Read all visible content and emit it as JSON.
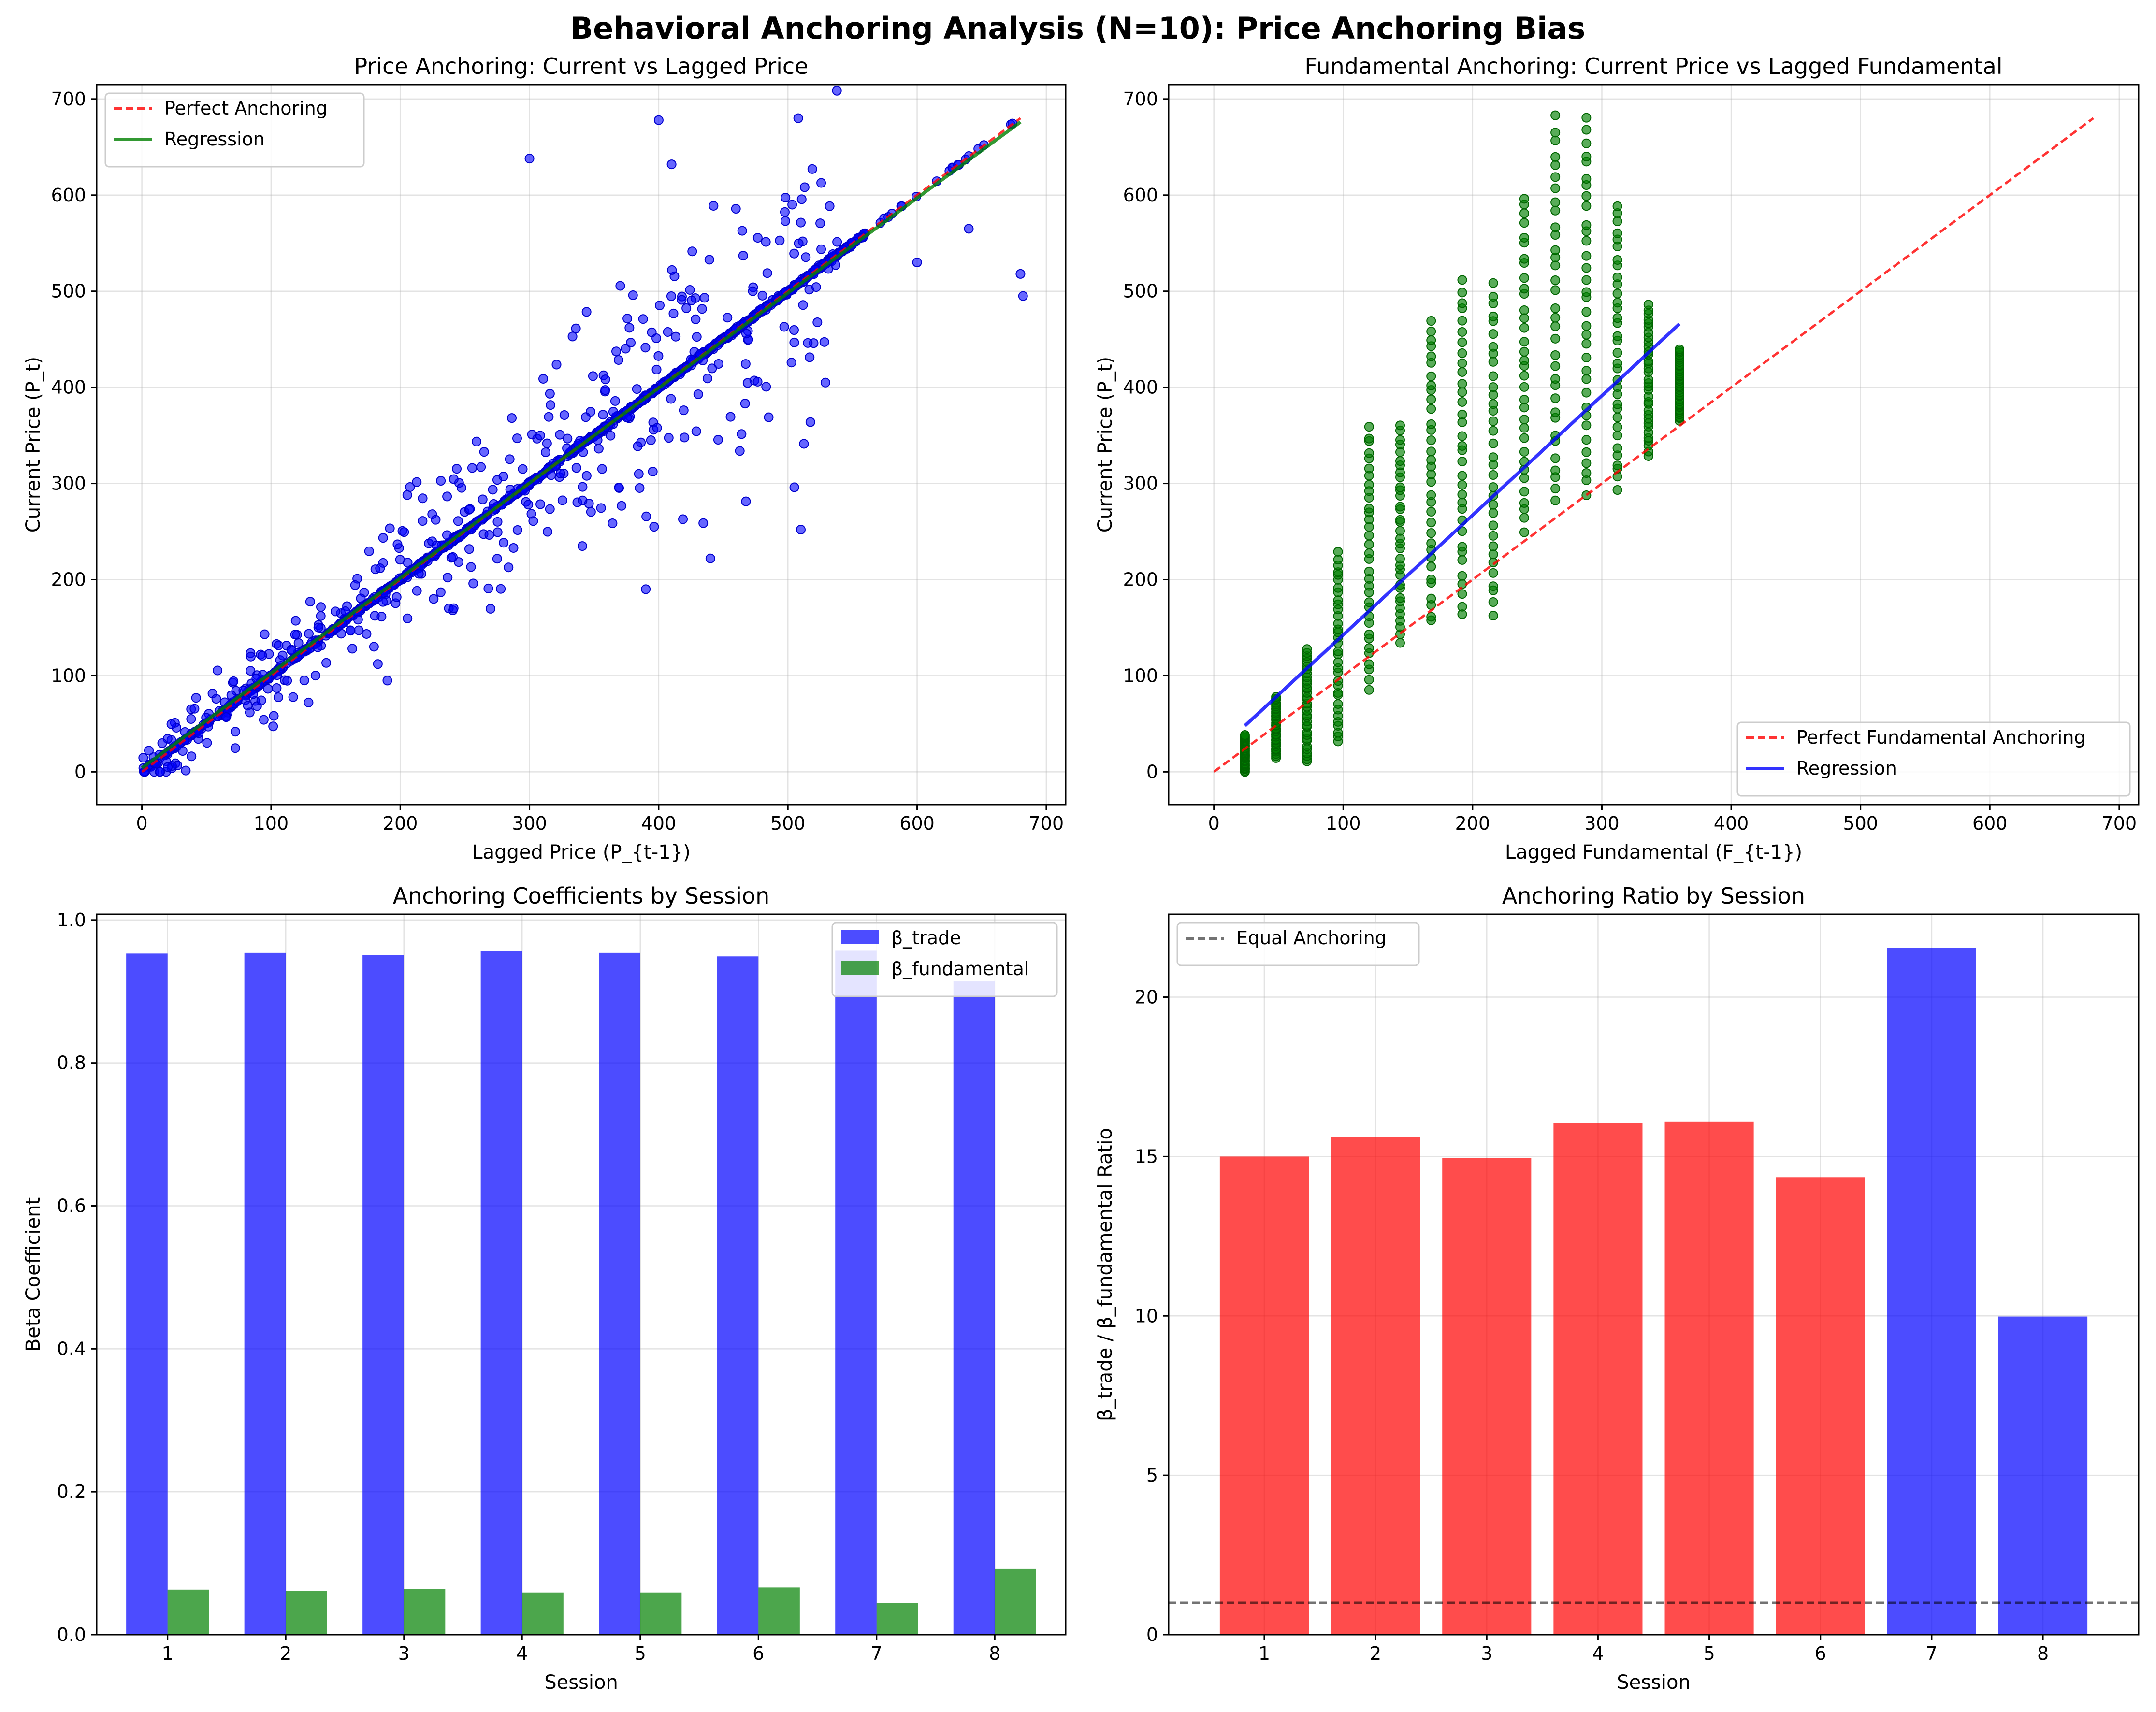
{
  "title": "Behavioral Anchoring Analysis (N=10): Price Anchoring Bias",
  "chart_data": [
    {
      "type": "scatter",
      "title": "Price Anchoring: Current vs Lagged Price",
      "xlabel": "Lagged Price (P_{t-1})",
      "ylabel": "Current Price (P_t)",
      "xlim": [
        -35,
        715
      ],
      "ylim": [
        -34,
        715
      ],
      "xticks": [
        0,
        100,
        200,
        300,
        400,
        500,
        600,
        700
      ],
      "yticks": [
        0,
        100,
        200,
        300,
        400,
        500,
        600,
        700
      ],
      "grid": true,
      "legend_position": "top-left",
      "series": [
        {
          "name": "Perfect Anchoring",
          "kind": "line",
          "style": "dashed",
          "color": "#ff0000",
          "x": [
            0,
            680
          ],
          "y": [
            0,
            680
          ]
        },
        {
          "name": "Regression",
          "kind": "line",
          "style": "solid",
          "color": "#008000",
          "x": [
            0,
            680
          ],
          "y": [
            4,
            676
          ]
        }
      ],
      "scatter": {
        "color": "#0000ff",
        "x_range": [
          0,
          682
        ],
        "description_points": [
          [
            300,
            638
          ],
          [
            400,
            678
          ],
          [
            410,
            632
          ],
          [
            508,
            680
          ],
          [
            680,
            518
          ],
          [
            682,
            495
          ],
          [
            600,
            530
          ],
          [
            640,
            565
          ],
          [
            510,
            252
          ],
          [
            505,
            296
          ],
          [
            390,
            190
          ],
          [
            440,
            222
          ],
          [
            190,
            95
          ],
          [
            20,
            5
          ]
        ]
      }
    },
    {
      "type": "scatter",
      "title": "Fundamental Anchoring: Current Price vs Lagged Fundamental",
      "xlabel": "Lagged Fundamental (F_{t-1})",
      "ylabel": "Current Price (P_t)",
      "xlim": [
        -35,
        715
      ],
      "ylim": [
        -34,
        715
      ],
      "xticks": [
        0,
        100,
        200,
        300,
        400,
        500,
        600,
        700
      ],
      "yticks": [
        0,
        100,
        200,
        300,
        400,
        500,
        600,
        700
      ],
      "grid": true,
      "legend_position": "bottom-right",
      "series": [
        {
          "name": "Perfect Fundamental Anchoring",
          "kind": "line",
          "style": "dashed",
          "color": "#ff0000",
          "x": [
            0,
            680
          ],
          "y": [
            0,
            680
          ]
        },
        {
          "name": "Regression",
          "kind": "line",
          "style": "solid",
          "color": "#0000ff",
          "x": [
            24,
            360
          ],
          "y": [
            48,
            466
          ]
        }
      ],
      "scatter": {
        "color": "#008000",
        "columns_x": [
          24,
          48,
          72,
          96,
          120,
          144,
          168,
          192,
          216,
          240,
          264,
          288,
          312,
          336,
          360
        ],
        "columns_ymin": [
          0,
          15,
          10,
          30,
          88,
          135,
          155,
          165,
          165,
          250,
          280,
          288,
          295,
          330,
          365
        ],
        "columns_ymax": [
          38,
          78,
          128,
          228,
          358,
          360,
          470,
          510,
          508,
          600,
          680,
          680,
          588,
          485,
          440
        ]
      }
    },
    {
      "type": "bar",
      "title": "Anchoring Coefficients by Session",
      "xlabel": "Session",
      "ylabel": "Beta Coefficient",
      "categories": [
        "1",
        "2",
        "3",
        "4",
        "5",
        "6",
        "7",
        "8"
      ],
      "ylim": [
        0,
        1.008
      ],
      "yticks": [
        "0.0",
        "0.2",
        "0.4",
        "0.6",
        "0.8",
        "1.0"
      ],
      "grid": true,
      "legend_position": "top-right",
      "series": [
        {
          "name": "β_trade",
          "color": "#0000ff",
          "values": [
            0.953,
            0.954,
            0.951,
            0.956,
            0.954,
            0.949,
            0.957,
            0.914
          ]
        },
        {
          "name": "β_fundamental",
          "color": "#008000",
          "values": [
            0.063,
            0.061,
            0.064,
            0.059,
            0.059,
            0.066,
            0.044,
            0.092
          ]
        }
      ]
    },
    {
      "type": "bar",
      "title": "Anchoring Ratio by Session",
      "xlabel": "Session",
      "ylabel": "β_trade / β_fundamental Ratio",
      "categories": [
        "1",
        "2",
        "3",
        "4",
        "5",
        "6",
        "7",
        "8"
      ],
      "values": [
        15.0,
        15.6,
        14.95,
        16.05,
        16.1,
        14.35,
        21.55,
        9.98
      ],
      "colors": [
        "#ff0000",
        "#ff0000",
        "#ff0000",
        "#ff0000",
        "#ff0000",
        "#ff0000",
        "#0000ff",
        "#0000ff"
      ],
      "ylim": [
        0,
        22.6
      ],
      "yticks": [
        "0",
        "5",
        "10",
        "15",
        "20"
      ],
      "grid": true,
      "legend_position": "top-left",
      "reference_line": {
        "name": "Equal Anchoring",
        "y": 1,
        "style": "dashed",
        "color": "#000000"
      }
    }
  ]
}
